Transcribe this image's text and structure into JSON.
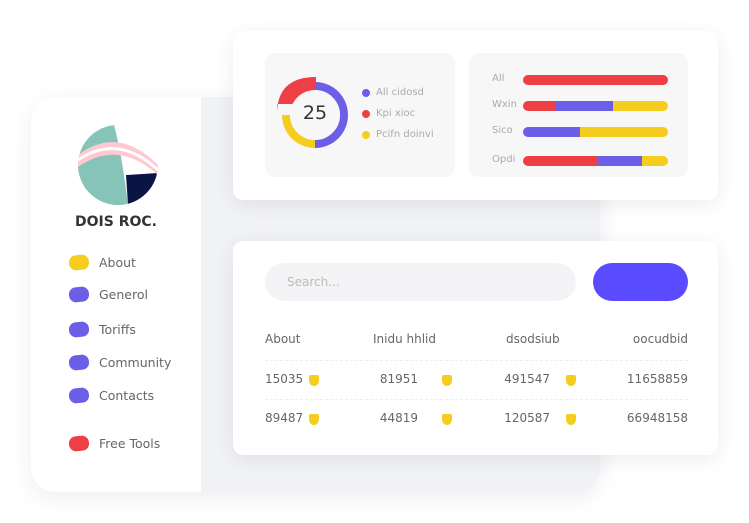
{
  "sidebar": {
    "brand": "DOIS ROC.",
    "items": [
      {
        "label": "About",
        "color": "#f5cd1e"
      },
      {
        "label": "Generol",
        "color": "#6b5fe8"
      },
      {
        "label": "Toriffs",
        "color": "#6b5fe8"
      },
      {
        "label": "Community",
        "color": "#6b5fe8"
      },
      {
        "label": "Contacts",
        "color": "#6b5fe8"
      },
      {
        "label": "Free Tools",
        "color": "#ee3f45"
      }
    ]
  },
  "chart_data": [
    {
      "type": "pie",
      "center_label": "25",
      "categories": [
        "All cidosd",
        "Kpi xioc",
        "Pcifn doinvi"
      ],
      "values": [
        50,
        25,
        25
      ],
      "colors": [
        "#6b5fe8",
        "#ee3f45",
        "#f5cd1e"
      ]
    },
    {
      "type": "bar",
      "orientation": "horizontal",
      "stacked": true,
      "categories": [
        "All",
        "Wxin",
        "Sico",
        "Opdi"
      ],
      "series": [
        {
          "color": "#ee3f45",
          "values": [
            100,
            23,
            0,
            52
          ]
        },
        {
          "color": "#6b5fe8",
          "values": [
            0,
            39,
            39,
            30
          ]
        },
        {
          "color": "#f5cd1e",
          "values": [
            0,
            38,
            61,
            18
          ]
        }
      ]
    }
  ],
  "search": {
    "placeholder": "Search..."
  },
  "table": {
    "headers": [
      "About",
      "Inidu hhlid",
      "dsodsiub",
      "oocudbid"
    ],
    "rows": [
      [
        "15035",
        "81951",
        "491547",
        "11658859"
      ],
      [
        "89487",
        "44819",
        "120587",
        "66948158"
      ]
    ]
  }
}
